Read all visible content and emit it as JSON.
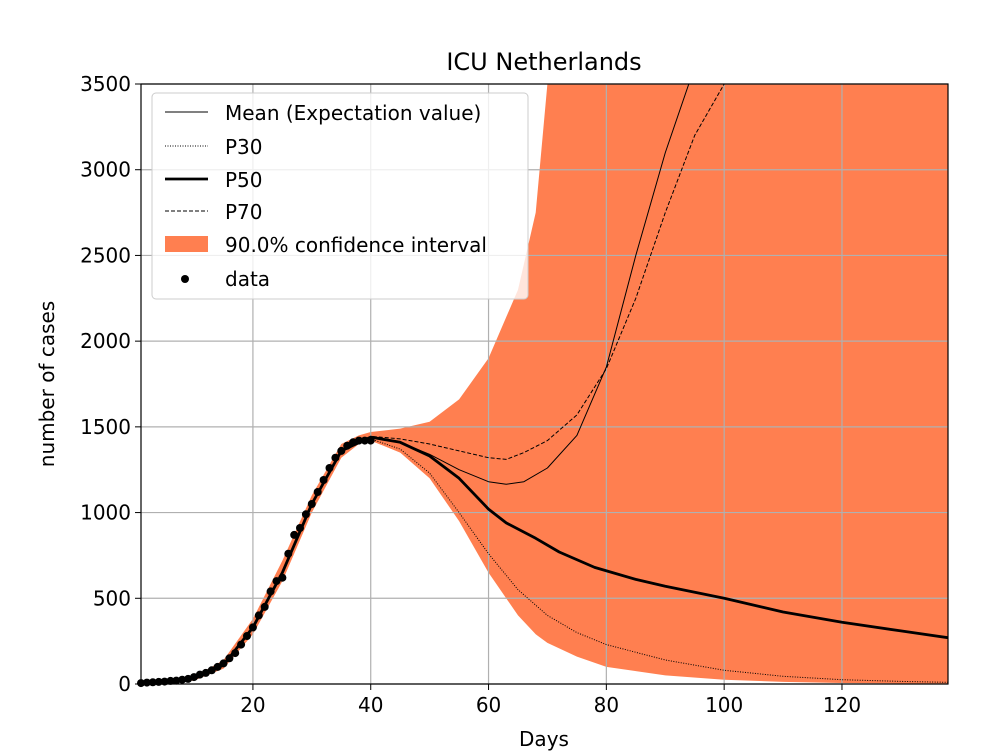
{
  "chart_data": {
    "type": "line",
    "title": "ICU Netherlands",
    "xlabel": "Days",
    "ylabel": "number of cases",
    "xlim": [
      1,
      138
    ],
    "ylim": [
      0,
      3500
    ],
    "xticks": [
      20,
      40,
      60,
      80,
      100,
      120
    ],
    "yticks": [
      0,
      500,
      1000,
      1500,
      2000,
      2500,
      3000,
      3500
    ],
    "grid": true,
    "legend_position": "top-left",
    "colors": {
      "band": "#ff7f50",
      "line": "#000000",
      "grid": "#b0b0b0"
    },
    "confidence_band": {
      "name": "90.0% confidence interval",
      "x": [
        1,
        10,
        15,
        20,
        25,
        30,
        35,
        38,
        40,
        45,
        50,
        55,
        60,
        65,
        68,
        70,
        75,
        80,
        90,
        100,
        110,
        120,
        130,
        138
      ],
      "lower": [
        5,
        20,
        90,
        290,
        600,
        1000,
        1320,
        1400,
        1420,
        1350,
        1200,
        950,
        650,
        400,
        290,
        240,
        160,
        100,
        50,
        25,
        12,
        6,
        3,
        2
      ],
      "upper": [
        15,
        40,
        140,
        380,
        720,
        1100,
        1400,
        1450,
        1470,
        1490,
        1530,
        1660,
        1900,
        2300,
        2750,
        3500,
        3500,
        3500,
        3500,
        3500,
        3500,
        3500,
        3500,
        3500
      ]
    },
    "series": [
      {
        "name": "Mean (Expectation value)",
        "style": "thin-solid",
        "x": [
          1,
          10,
          15,
          20,
          25,
          30,
          35,
          40,
          45,
          50,
          55,
          60,
          63,
          66,
          70,
          75,
          80,
          85,
          90,
          94
        ],
        "values": [
          10,
          30,
          110,
          330,
          650,
          1050,
          1360,
          1440,
          1410,
          1340,
          1250,
          1180,
          1165,
          1180,
          1260,
          1450,
          1850,
          2500,
          3100,
          3500
        ]
      },
      {
        "name": "P30",
        "style": "dotted",
        "x": [
          1,
          10,
          15,
          20,
          25,
          30,
          35,
          40,
          45,
          50,
          55,
          60,
          65,
          70,
          75,
          80,
          90,
          100,
          110,
          120,
          130,
          138
        ],
        "values": [
          10,
          30,
          110,
          330,
          650,
          1050,
          1360,
          1430,
          1370,
          1230,
          1000,
          760,
          550,
          400,
          300,
          230,
          140,
          80,
          45,
          25,
          15,
          10
        ]
      },
      {
        "name": "P50",
        "style": "thick-solid",
        "x": [
          1,
          10,
          15,
          20,
          25,
          30,
          35,
          40,
          45,
          50,
          55,
          60,
          63,
          68,
          72,
          78,
          85,
          90,
          100,
          110,
          120,
          130,
          138
        ],
        "values": [
          10,
          30,
          110,
          330,
          650,
          1050,
          1360,
          1440,
          1410,
          1330,
          1200,
          1020,
          940,
          850,
          770,
          680,
          610,
          570,
          500,
          420,
          360,
          310,
          270
        ]
      },
      {
        "name": "P70",
        "style": "dashed",
        "x": [
          1,
          10,
          15,
          20,
          25,
          30,
          35,
          40,
          45,
          50,
          55,
          60,
          63,
          66,
          70,
          75,
          80,
          85,
          90,
          95,
          100
        ],
        "values": [
          10,
          30,
          110,
          330,
          650,
          1050,
          1360,
          1445,
          1430,
          1400,
          1360,
          1320,
          1310,
          1350,
          1420,
          1570,
          1840,
          2250,
          2750,
          3200,
          3500
        ]
      }
    ],
    "data_points": {
      "name": "data",
      "x": [
        1,
        2,
        3,
        4,
        5,
        6,
        7,
        8,
        9,
        10,
        11,
        12,
        13,
        14,
        15,
        16,
        17,
        18,
        19,
        20,
        21,
        22,
        23,
        24,
        25,
        26,
        27,
        28,
        29,
        30,
        31,
        32,
        33,
        34,
        35,
        36,
        37,
        38,
        39,
        40
      ],
      "values": [
        5,
        8,
        10,
        12,
        14,
        18,
        20,
        25,
        30,
        40,
        55,
        65,
        80,
        100,
        120,
        150,
        180,
        230,
        280,
        330,
        400,
        450,
        540,
        600,
        620,
        760,
        870,
        910,
        990,
        1050,
        1120,
        1190,
        1260,
        1320,
        1360,
        1390,
        1410,
        1420,
        1420,
        1420
      ]
    }
  }
}
